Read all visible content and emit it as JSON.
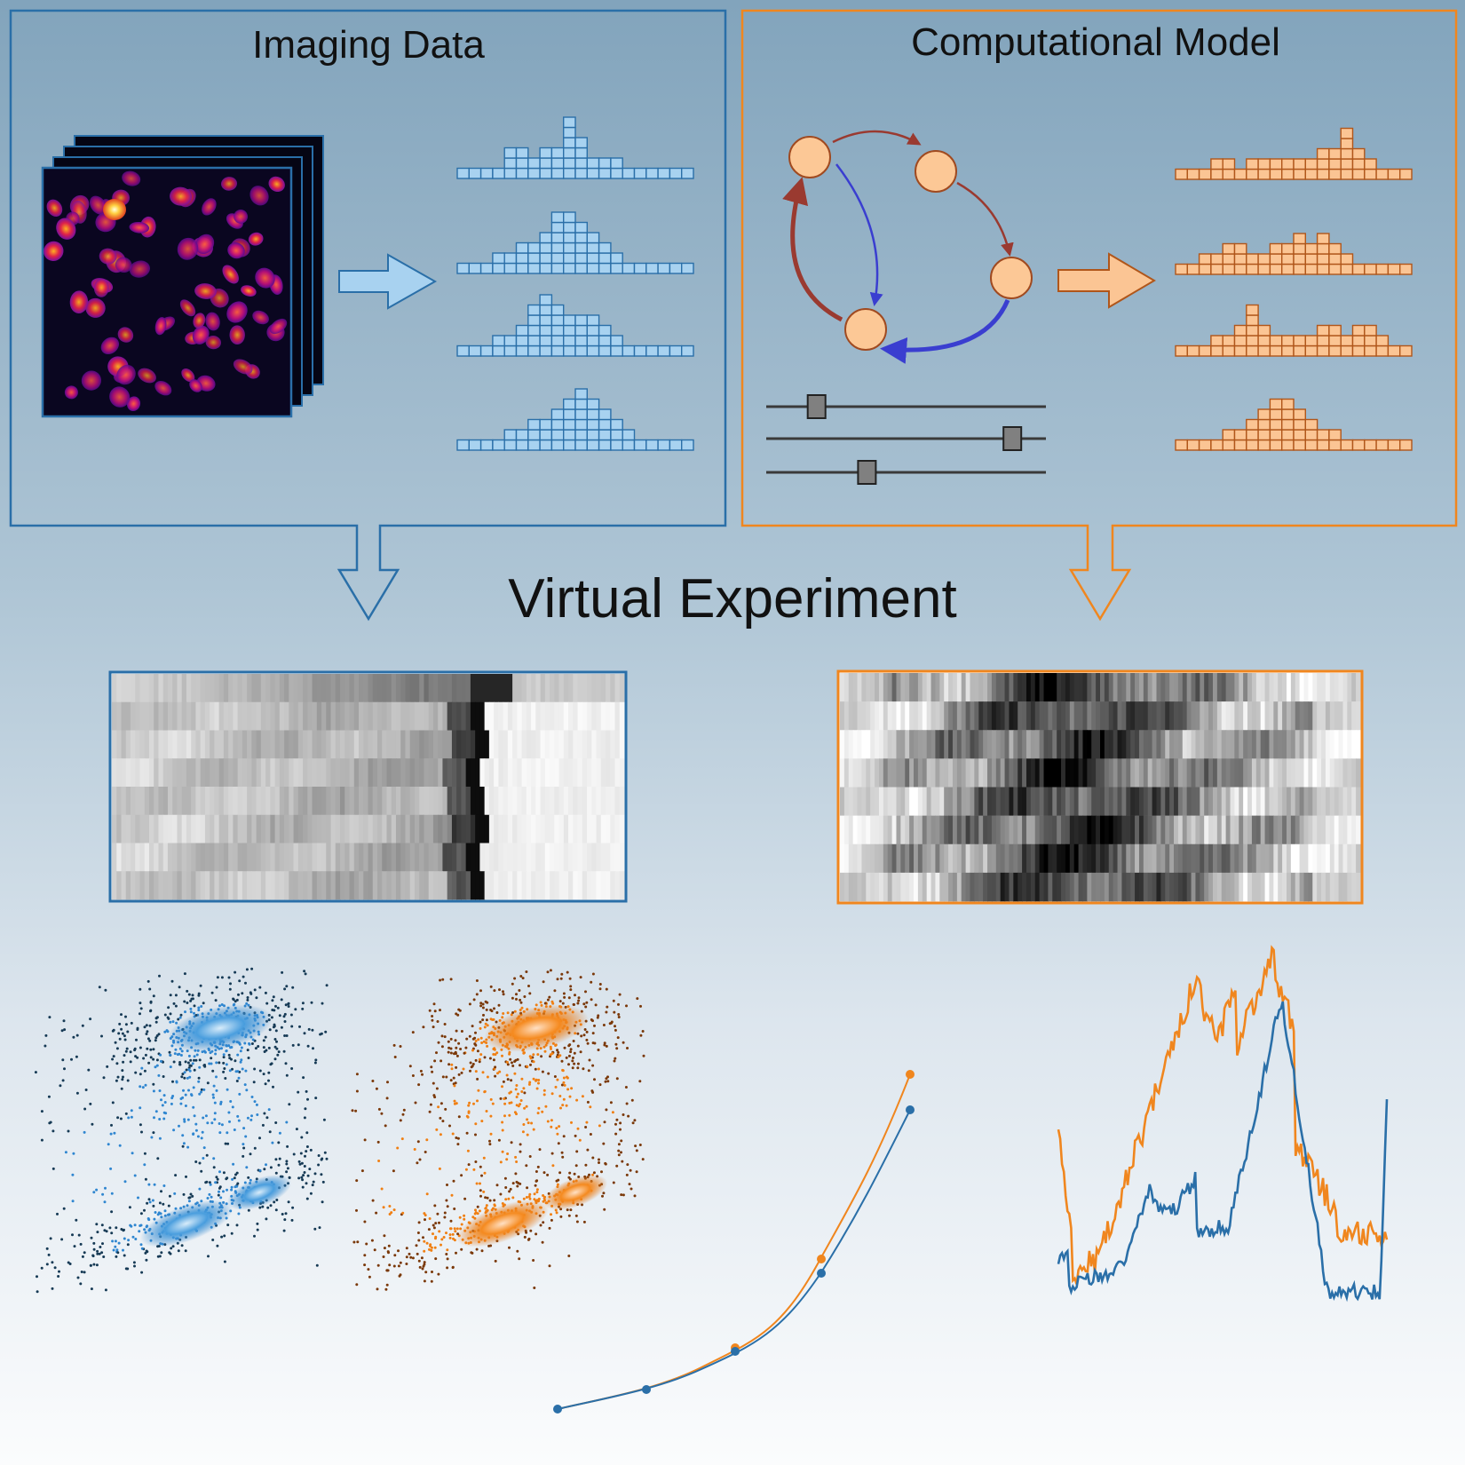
{
  "panels": {
    "imaging": {
      "title": "Imaging Data",
      "color": "#2a6fa8",
      "fill": "#a8d2f0",
      "histograms": [
        [
          1,
          1,
          1,
          1,
          3,
          3,
          2,
          3,
          3,
          6,
          4,
          2,
          2,
          2,
          1,
          1,
          1,
          1,
          1,
          1
        ],
        [
          1,
          1,
          1,
          2,
          2,
          3,
          3,
          4,
          6,
          6,
          5,
          4,
          3,
          2,
          1,
          1,
          1,
          1,
          1,
          1
        ],
        [
          1,
          1,
          1,
          2,
          2,
          3,
          5,
          6,
          5,
          4,
          4,
          4,
          3,
          2,
          1,
          1,
          1,
          1,
          1,
          1
        ],
        [
          1,
          1,
          1,
          1,
          2,
          2,
          3,
          3,
          4,
          5,
          6,
          5,
          4,
          3,
          2,
          1,
          1,
          1,
          1,
          1
        ]
      ]
    },
    "model": {
      "title": "Computational Model",
      "color": "#f0861e",
      "fill": "#fbc594",
      "node_fill": "#fcc896",
      "arrow_red": "#9a3a30",
      "arrow_blue": "#3a3ed0",
      "slider_positions": [
        0.18,
        0.88,
        0.36
      ],
      "histograms": [
        [
          1,
          1,
          1,
          2,
          2,
          1,
          2,
          2,
          2,
          2,
          2,
          2,
          3,
          3,
          5,
          3,
          2,
          1,
          1,
          1
        ],
        [
          1,
          1,
          2,
          2,
          3,
          3,
          2,
          2,
          3,
          3,
          4,
          3,
          4,
          3,
          2,
          1,
          1,
          1,
          1,
          1
        ],
        [
          1,
          1,
          1,
          2,
          2,
          3,
          5,
          3,
          2,
          2,
          2,
          2,
          3,
          3,
          2,
          3,
          3,
          2,
          1,
          1
        ],
        [
          1,
          1,
          1,
          1,
          2,
          2,
          3,
          4,
          5,
          5,
          4,
          3,
          2,
          2,
          1,
          1,
          1,
          1,
          1,
          1
        ]
      ]
    }
  },
  "center": {
    "title": "Virtual Experiment"
  }
}
